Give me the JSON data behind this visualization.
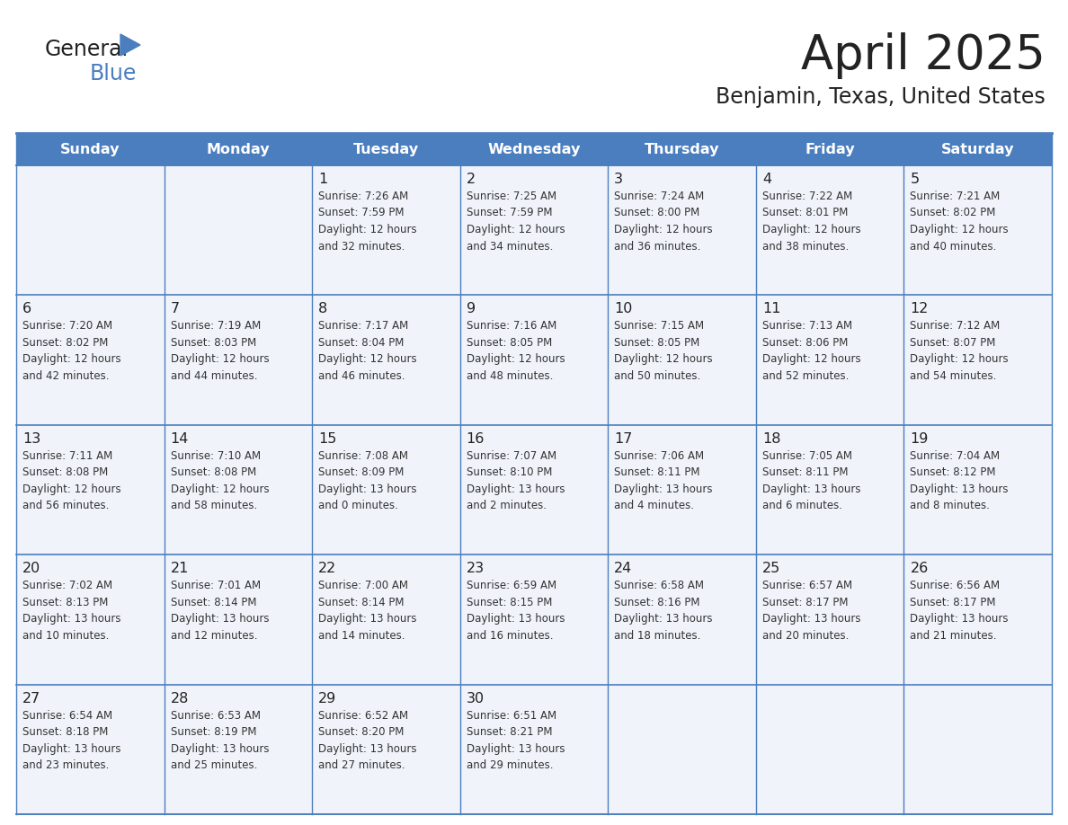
{
  "title": "April 2025",
  "subtitle": "Benjamin, Texas, United States",
  "header_color": "#4a7ebf",
  "header_text_color": "#ffffff",
  "cell_bg_color": "#f0f4fa",
  "border_color": "#4a7ebf",
  "title_color": "#222222",
  "subtitle_color": "#222222",
  "day_headers": [
    "Sunday",
    "Monday",
    "Tuesday",
    "Wednesday",
    "Thursday",
    "Friday",
    "Saturday"
  ],
  "weeks": [
    [
      {
        "day": "",
        "text": ""
      },
      {
        "day": "",
        "text": ""
      },
      {
        "day": "1",
        "text": "Sunrise: 7:26 AM\nSunset: 7:59 PM\nDaylight: 12 hours\nand 32 minutes."
      },
      {
        "day": "2",
        "text": "Sunrise: 7:25 AM\nSunset: 7:59 PM\nDaylight: 12 hours\nand 34 minutes."
      },
      {
        "day": "3",
        "text": "Sunrise: 7:24 AM\nSunset: 8:00 PM\nDaylight: 12 hours\nand 36 minutes."
      },
      {
        "day": "4",
        "text": "Sunrise: 7:22 AM\nSunset: 8:01 PM\nDaylight: 12 hours\nand 38 minutes."
      },
      {
        "day": "5",
        "text": "Sunrise: 7:21 AM\nSunset: 8:02 PM\nDaylight: 12 hours\nand 40 minutes."
      }
    ],
    [
      {
        "day": "6",
        "text": "Sunrise: 7:20 AM\nSunset: 8:02 PM\nDaylight: 12 hours\nand 42 minutes."
      },
      {
        "day": "7",
        "text": "Sunrise: 7:19 AM\nSunset: 8:03 PM\nDaylight: 12 hours\nand 44 minutes."
      },
      {
        "day": "8",
        "text": "Sunrise: 7:17 AM\nSunset: 8:04 PM\nDaylight: 12 hours\nand 46 minutes."
      },
      {
        "day": "9",
        "text": "Sunrise: 7:16 AM\nSunset: 8:05 PM\nDaylight: 12 hours\nand 48 minutes."
      },
      {
        "day": "10",
        "text": "Sunrise: 7:15 AM\nSunset: 8:05 PM\nDaylight: 12 hours\nand 50 minutes."
      },
      {
        "day": "11",
        "text": "Sunrise: 7:13 AM\nSunset: 8:06 PM\nDaylight: 12 hours\nand 52 minutes."
      },
      {
        "day": "12",
        "text": "Sunrise: 7:12 AM\nSunset: 8:07 PM\nDaylight: 12 hours\nand 54 minutes."
      }
    ],
    [
      {
        "day": "13",
        "text": "Sunrise: 7:11 AM\nSunset: 8:08 PM\nDaylight: 12 hours\nand 56 minutes."
      },
      {
        "day": "14",
        "text": "Sunrise: 7:10 AM\nSunset: 8:08 PM\nDaylight: 12 hours\nand 58 minutes."
      },
      {
        "day": "15",
        "text": "Sunrise: 7:08 AM\nSunset: 8:09 PM\nDaylight: 13 hours\nand 0 minutes."
      },
      {
        "day": "16",
        "text": "Sunrise: 7:07 AM\nSunset: 8:10 PM\nDaylight: 13 hours\nand 2 minutes."
      },
      {
        "day": "17",
        "text": "Sunrise: 7:06 AM\nSunset: 8:11 PM\nDaylight: 13 hours\nand 4 minutes."
      },
      {
        "day": "18",
        "text": "Sunrise: 7:05 AM\nSunset: 8:11 PM\nDaylight: 13 hours\nand 6 minutes."
      },
      {
        "day": "19",
        "text": "Sunrise: 7:04 AM\nSunset: 8:12 PM\nDaylight: 13 hours\nand 8 minutes."
      }
    ],
    [
      {
        "day": "20",
        "text": "Sunrise: 7:02 AM\nSunset: 8:13 PM\nDaylight: 13 hours\nand 10 minutes."
      },
      {
        "day": "21",
        "text": "Sunrise: 7:01 AM\nSunset: 8:14 PM\nDaylight: 13 hours\nand 12 minutes."
      },
      {
        "day": "22",
        "text": "Sunrise: 7:00 AM\nSunset: 8:14 PM\nDaylight: 13 hours\nand 14 minutes."
      },
      {
        "day": "23",
        "text": "Sunrise: 6:59 AM\nSunset: 8:15 PM\nDaylight: 13 hours\nand 16 minutes."
      },
      {
        "day": "24",
        "text": "Sunrise: 6:58 AM\nSunset: 8:16 PM\nDaylight: 13 hours\nand 18 minutes."
      },
      {
        "day": "25",
        "text": "Sunrise: 6:57 AM\nSunset: 8:17 PM\nDaylight: 13 hours\nand 20 minutes."
      },
      {
        "day": "26",
        "text": "Sunrise: 6:56 AM\nSunset: 8:17 PM\nDaylight: 13 hours\nand 21 minutes."
      }
    ],
    [
      {
        "day": "27",
        "text": "Sunrise: 6:54 AM\nSunset: 8:18 PM\nDaylight: 13 hours\nand 23 minutes."
      },
      {
        "day": "28",
        "text": "Sunrise: 6:53 AM\nSunset: 8:19 PM\nDaylight: 13 hours\nand 25 minutes."
      },
      {
        "day": "29",
        "text": "Sunrise: 6:52 AM\nSunset: 8:20 PM\nDaylight: 13 hours\nand 27 minutes."
      },
      {
        "day": "30",
        "text": "Sunrise: 6:51 AM\nSunset: 8:21 PM\nDaylight: 13 hours\nand 29 minutes."
      },
      {
        "day": "",
        "text": ""
      },
      {
        "day": "",
        "text": ""
      },
      {
        "day": "",
        "text": ""
      }
    ]
  ],
  "logo_general_color": "#222222",
  "logo_blue_color": "#4a7ebf",
  "logo_triangle_color": "#4a7ebf"
}
